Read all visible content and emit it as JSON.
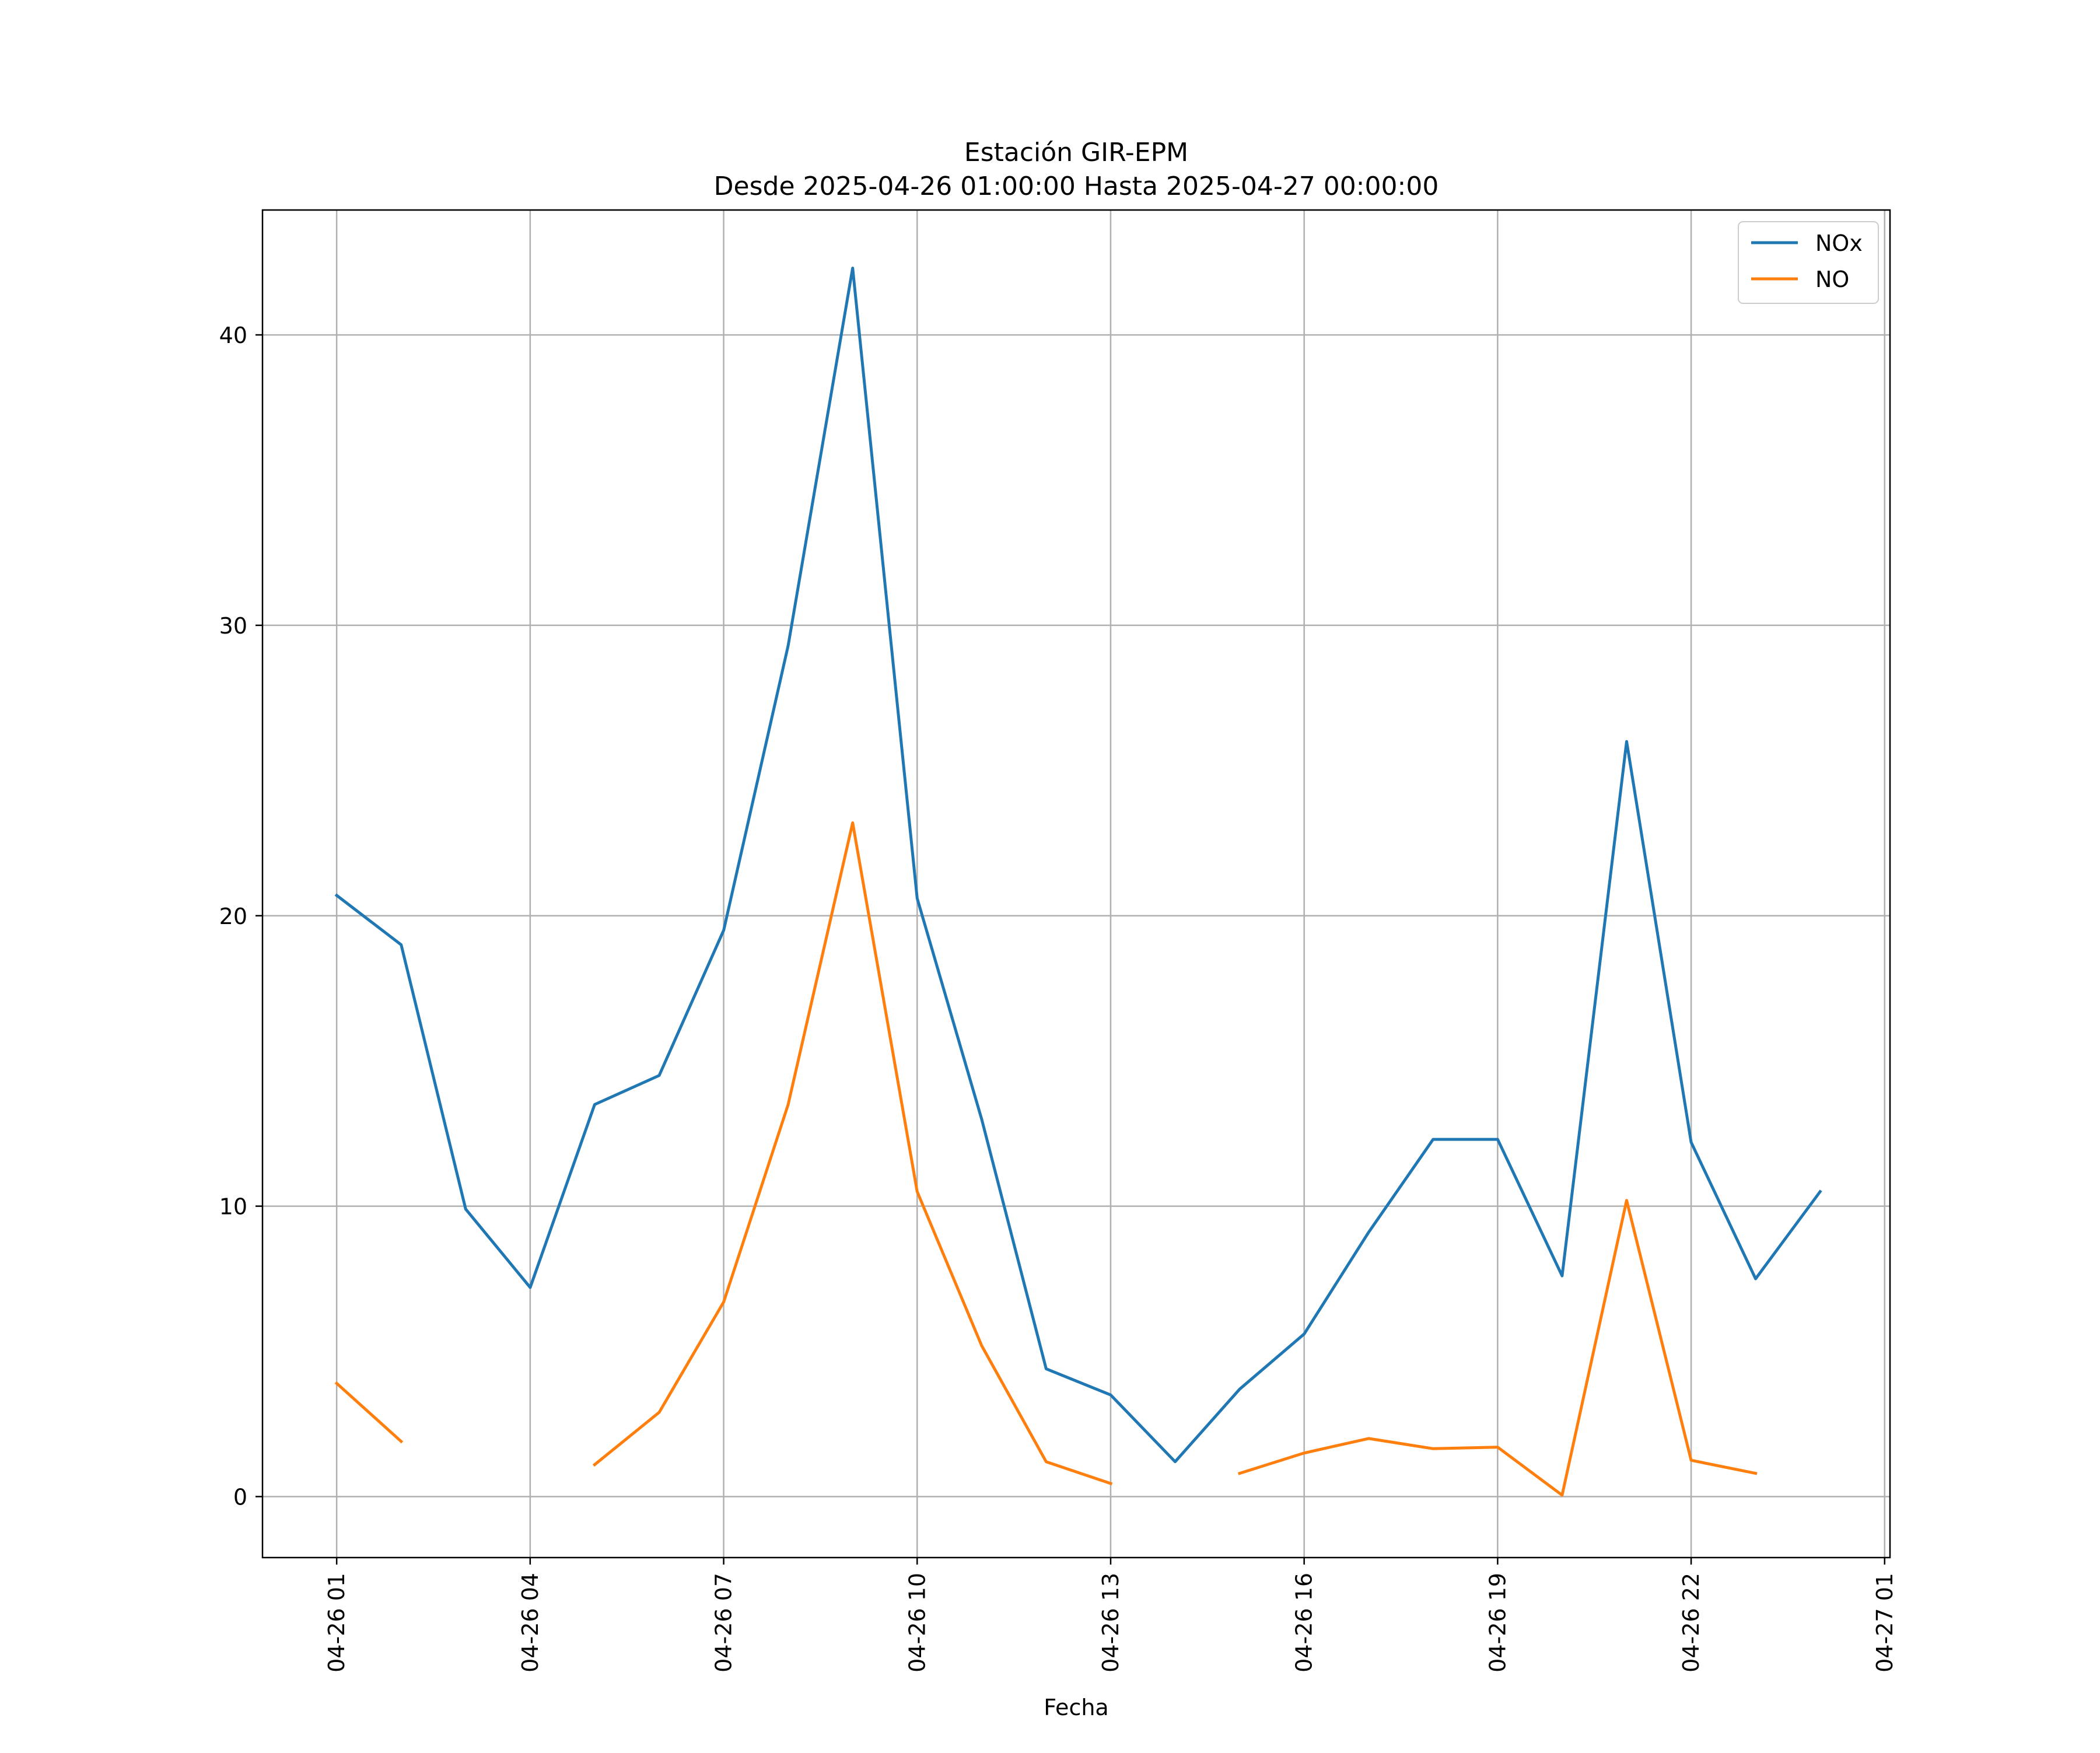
{
  "chart_data": {
    "type": "line",
    "title": "Estación GIR-EPM",
    "subtitle": "Desde 2025-04-26 01:00:00 Hasta 2025-04-27 00:00:00",
    "xlabel": "Fecha",
    "ylabel": "",
    "x_tick_labels": [
      "04-26 01",
      "04-26 04",
      "04-26 07",
      "04-26 10",
      "04-26 13",
      "04-26 16",
      "04-26 19",
      "04-26 22",
      "04-27 01"
    ],
    "x_ticks": [
      "2025-04-26 01:00",
      "2025-04-26 04:00",
      "2025-04-26 07:00",
      "2025-04-26 10:00",
      "2025-04-26 13:00",
      "2025-04-26 16:00",
      "2025-04-26 19:00",
      "2025-04-26 22:00",
      "2025-04-27 01:00"
    ],
    "y_ticks": [
      0,
      10,
      20,
      30,
      40
    ],
    "xlim": [
      "2025-04-25 23:51",
      "2025-04-27 01:05"
    ],
    "ylim": [
      -2.1,
      44.3
    ],
    "grid": true,
    "legend_position": "top-right",
    "x": [
      "2025-04-26 01:00",
      "2025-04-26 02:00",
      "2025-04-26 03:00",
      "2025-04-26 04:00",
      "2025-04-26 05:00",
      "2025-04-26 06:00",
      "2025-04-26 07:00",
      "2025-04-26 08:00",
      "2025-04-26 09:00",
      "2025-04-26 10:00",
      "2025-04-26 11:00",
      "2025-04-26 12:00",
      "2025-04-26 13:00",
      "2025-04-26 14:00",
      "2025-04-26 15:00",
      "2025-04-26 16:00",
      "2025-04-26 17:00",
      "2025-04-26 18:00",
      "2025-04-26 19:00",
      "2025-04-26 20:00",
      "2025-04-26 21:00",
      "2025-04-26 22:00",
      "2025-04-26 23:00",
      "2025-04-27 00:00"
    ],
    "series": [
      {
        "name": "NOx",
        "color": "#1f77b4",
        "values": [
          20.7,
          19.0,
          9.9,
          7.2,
          13.5,
          14.5,
          19.5,
          29.3,
          42.3,
          20.6,
          13.0,
          4.4,
          3.5,
          1.2,
          3.7,
          5.6,
          9.1,
          12.3,
          12.3,
          7.6,
          26.0,
          12.2,
          7.5,
          10.5
        ]
      },
      {
        "name": "NO",
        "color": "#ff7f0e",
        "values": [
          3.9,
          1.9,
          null,
          null,
          1.1,
          2.9,
          6.7,
          13.5,
          23.2,
          10.5,
          5.2,
          1.2,
          0.45,
          null,
          0.8,
          1.5,
          2.0,
          1.65,
          1.7,
          0.05,
          10.2,
          1.25,
          0.8,
          null
        ]
      }
    ]
  }
}
